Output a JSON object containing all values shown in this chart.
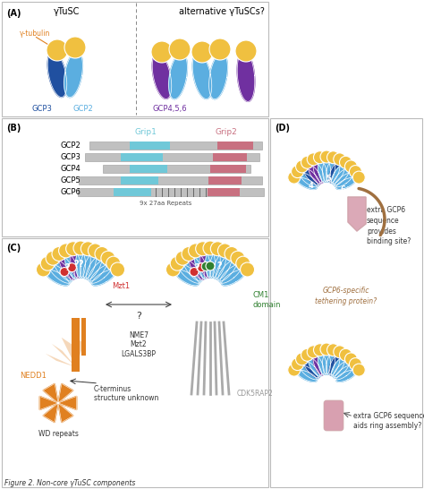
{
  "colors": {
    "gcp2_blue": "#5BAEE0",
    "gcp3_darkblue": "#2050A0",
    "gcp_purple": "#7030A0",
    "gamma_tubulin": "#F0C040",
    "grip1_cyan": "#70C8D8",
    "grip2_pink": "#C87080",
    "gray_bar": "#C0C0C0",
    "red": "#D03030",
    "green": "#308030",
    "orange": "#E08020",
    "brown": "#A07040",
    "pink_gcp6": "#D8A0B0",
    "white": "#FFFFFF",
    "black": "#000000",
    "light_gray": "#E8E8E8",
    "border": "#888888",
    "medium_blue": "#3878C0"
  },
  "panel_A_label": "(A)",
  "panel_B_label": "(B)",
  "panel_C_label": "(C)",
  "panel_D_label": "(D)",
  "title_A": "γTuSC",
  "subtitle_A": "alternative γTuSCs?",
  "label_gamma": "γ-tubulin",
  "label_GCP3": "GCP3",
  "label_GCP2": "GCP2",
  "label_GCP456": "GCP4,5,6",
  "grip1_label": "Grip1",
  "grip2_label": "Grip2",
  "gcp_rows": [
    "GCP2",
    "GCP3",
    "GCP4",
    "GCP5",
    "GCP6"
  ],
  "repeats_label": "9x 27aa Repeats",
  "mzt1_label": "Mzt1",
  "nedd1_label": "NEDD1",
  "wd_label": "WD repeats",
  "cterm_label": "C-terminus\nstructure unknown",
  "nme7_label": "NME7\nMzt2\nLGALS3BP",
  "cm1_label": "CM1\ndomain",
  "cdk5rap2_label": "CDK5RAP2",
  "extra_gcp6_label1": "extra GCP6\nsequence\nprovides\nbinding site?",
  "tethering_label": "GCP6-specific\ntethering protein?",
  "extra_gcp6_label2": "extra GCP6 sequence\naids ring assembly?",
  "fig_caption": "Figure 2. Non-core γTuSC components"
}
